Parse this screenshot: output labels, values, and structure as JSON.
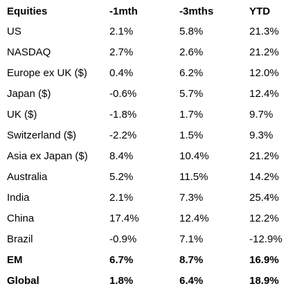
{
  "table": {
    "headers": [
      "Equities",
      "-1mth",
      "-3mths",
      "YTD"
    ],
    "rows": [
      {
        "name": "US",
        "m1": "2.1%",
        "m3": "5.8%",
        "ytd": "21.3%",
        "bold": false
      },
      {
        "name": "NASDAQ",
        "m1": "2.7%",
        "m3": "2.6%",
        "ytd": "21.2%",
        "bold": false
      },
      {
        "name": "Europe ex UK ($)",
        "m1": "0.4%",
        "m3": "6.2%",
        "ytd": "12.0%",
        "bold": false
      },
      {
        "name": "Japan ($)",
        "m1": "-0.6%",
        "m3": "5.7%",
        "ytd": "12.4%",
        "bold": false
      },
      {
        "name": "UK ($)",
        "m1": "-1.8%",
        "m3": "1.7%",
        "ytd": "9.7%",
        "bold": false
      },
      {
        "name": "Switzerland ($)",
        "m1": "-2.2%",
        "m3": "1.5%",
        "ytd": "9.3%",
        "bold": false
      },
      {
        "name": "Asia ex Japan ($)",
        "m1": "8.4%",
        "m3": "10.4%",
        "ytd": "21.2%",
        "bold": false
      },
      {
        "name": "Australia",
        "m1": "5.2%",
        "m3": "11.5%",
        "ytd": "14.2%",
        "bold": false
      },
      {
        "name": "India",
        "m1": "2.1%",
        "m3": "7.3%",
        "ytd": "25.4%",
        "bold": false
      },
      {
        "name": "China",
        "m1": "17.4%",
        "m3": "12.4%",
        "ytd": "12.2%",
        "bold": false
      },
      {
        "name": "Brazil",
        "m1": "-0.9%",
        "m3": "7.1%",
        "ytd": "-12.9%",
        "bold": false
      },
      {
        "name": "EM",
        "m1": "6.7%",
        "m3": "8.7%",
        "ytd": "16.9%",
        "bold": true
      },
      {
        "name": "Global",
        "m1": "1.8%",
        "m3": "6.4%",
        "ytd": "18.9%",
        "bold": true
      }
    ]
  }
}
